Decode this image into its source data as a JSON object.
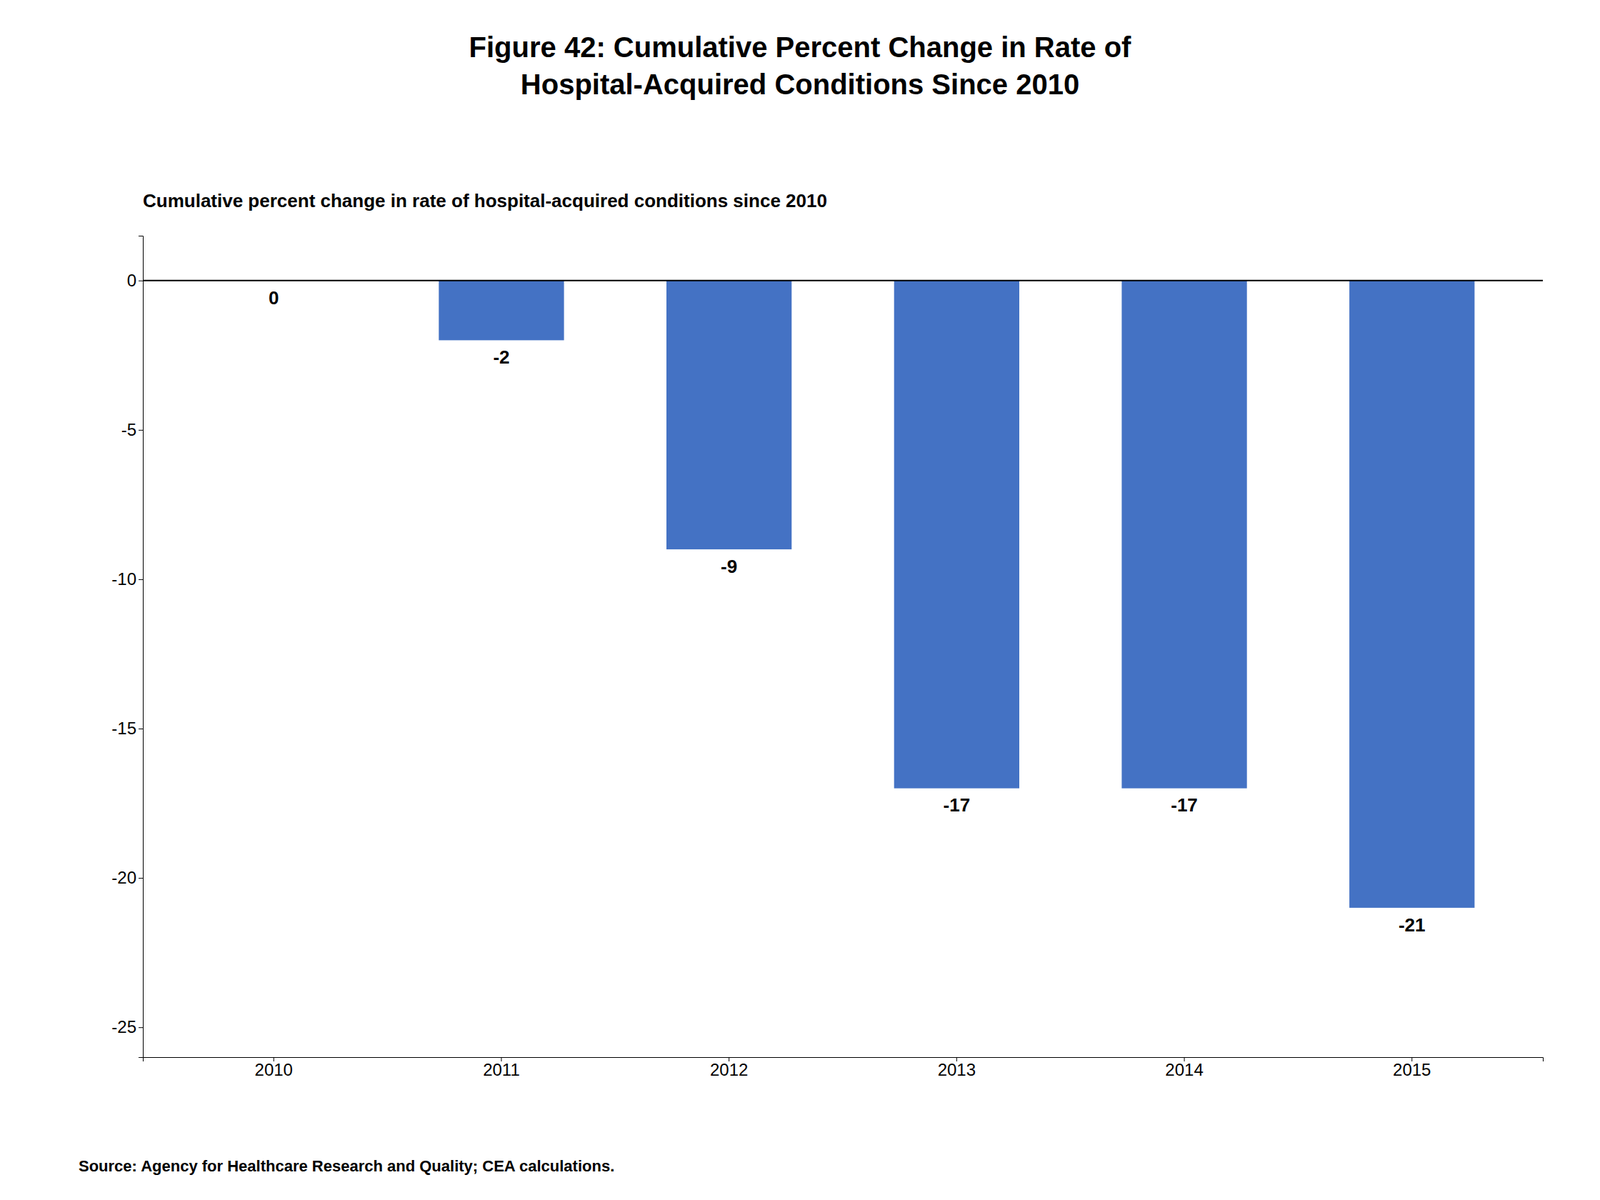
{
  "chart_data": {
    "type": "bar",
    "title": "Figure 42: Cumulative Percent Change in Rate of\nHospital-Acquired Conditions Since 2010",
    "subtitle": "Cumulative percent change in rate of hospital-acquired conditions since 2010",
    "source": "Source: Agency for Healthcare Research and Quality; CEA calculations.",
    "categories": [
      "2010",
      "2011",
      "2012",
      "2013",
      "2014",
      "2015"
    ],
    "values": [
      0,
      -2,
      -9,
      -17,
      -17,
      -21
    ],
    "color": "#4472C4",
    "ylim": [
      -26,
      1.5
    ],
    "yticks": [
      0,
      -5,
      -10,
      -15,
      -20,
      -25
    ],
    "grid": false,
    "data_labels": true
  }
}
